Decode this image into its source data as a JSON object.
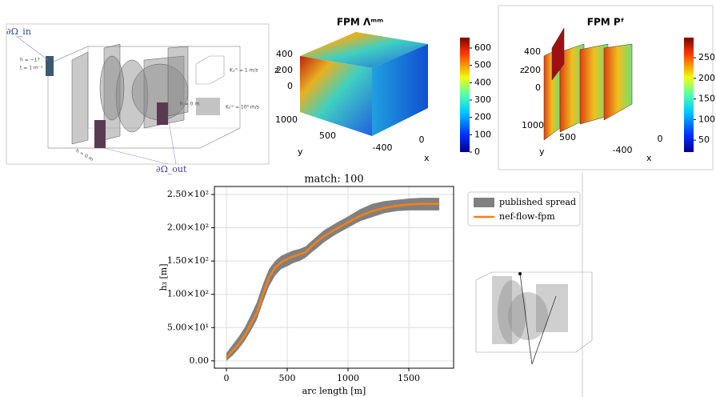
{
  "chart_data": {
    "type": "line",
    "title": "match: 100",
    "x_label": "arc length [m]",
    "y_label": "h₃ [m]",
    "x": [
      0,
      50,
      100,
      150,
      200,
      250,
      300,
      350,
      400,
      450,
      500,
      550,
      600,
      650,
      700,
      750,
      800,
      900,
      1000,
      1100,
      1200,
      1300,
      1400,
      1500,
      1600,
      1750
    ],
    "series": [
      {
        "name": "nef-flow-fpm",
        "color": "#ff7f0e",
        "values": [
          5,
          15,
          25,
          38,
          55,
          72,
          100,
          125,
          140,
          148,
          153,
          157,
          160,
          163,
          172,
          180,
          187,
          198,
          208,
          218,
          225,
          230,
          233,
          235,
          236,
          236
        ]
      }
    ],
    "band": {
      "name": "published spread",
      "color": "#808080",
      "lower": [
        0,
        8,
        18,
        30,
        45,
        62,
        88,
        112,
        128,
        138,
        142,
        147,
        150,
        155,
        163,
        170,
        178,
        190,
        200,
        210,
        216,
        222,
        225,
        226,
        226,
        226
      ],
      "upper": [
        12,
        24,
        36,
        50,
        68,
        88,
        115,
        138,
        150,
        158,
        162,
        166,
        168,
        172,
        180,
        188,
        196,
        207,
        217,
        228,
        236,
        240,
        242,
        244,
        245,
        245
      ]
    },
    "xlim": [
      -99,
      1868
    ],
    "xticks": [
      0,
      500,
      1000,
      1500
    ],
    "ylim": [
      -11,
      262
    ],
    "yticks": [
      {
        "value": 0,
        "label": "0.00"
      },
      {
        "value": 50,
        "label": "5.00×10¹"
      },
      {
        "value": 100,
        "label": "1.00×10²"
      },
      {
        "value": 150,
        "label": "1.50×10²"
      },
      {
        "value": 200,
        "label": "2.00×10²"
      },
      {
        "value": 250,
        "label": "2.50×10²"
      }
    ],
    "grid": true
  },
  "panels": [
    {
      "in_label": "∂Ω_in",
      "out_label": "∂Ω_out",
      "notes": [
        "h = −1?",
        "t = 1 m⁻¹",
        "h = 0 m",
        "h = 0 m"
      ],
      "legend": [
        "K₁ᵐ = 1 m/s",
        "K₂ᵐ = 10⁴ m/s"
      ]
    },
    {
      "title": "FPM  Λᵐᵐ",
      "z_label": "z",
      "y_label": "y",
      "x_label": "x",
      "z_ticks": [
        400,
        200,
        0
      ],
      "y_ticks": [
        1000,
        500
      ],
      "x_ticks": [
        -400,
        0
      ],
      "colorbar": {
        "lim": [
          0,
          660
        ],
        "ticks": [
          0,
          100,
          200,
          300,
          400,
          500,
          600
        ]
      }
    },
    {
      "title": "FPM  Pᶠ",
      "z_label": "z",
      "y_label": "y",
      "x_label": "x",
      "z_ticks": [
        400,
        200,
        0
      ],
      "y_ticks": [
        1000,
        500
      ],
      "x_ticks": [
        -400,
        0
      ],
      "colorbar": {
        "lim": [
          21,
          299
        ],
        "ticks": [
          50,
          100,
          150,
          200,
          250
        ]
      }
    }
  ]
}
